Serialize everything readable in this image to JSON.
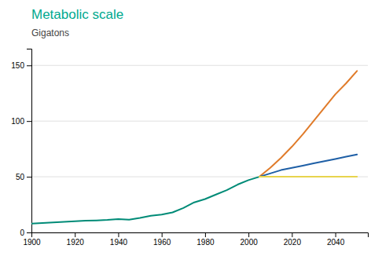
{
  "chart_data": {
    "type": "line",
    "title": "Metabolic scale",
    "subtitle": "Gigatons",
    "xlim": [
      1900,
      2055
    ],
    "ylim": [
      0,
      165
    ],
    "xticks": [
      1900,
      1920,
      1940,
      1960,
      1980,
      2000,
      2020,
      2040
    ],
    "yticks": [
      0,
      50,
      100,
      150
    ],
    "grid": true,
    "series": [
      {
        "color": "#008B77",
        "x": [
          1900,
          1905,
          1910,
          1915,
          1920,
          1925,
          1930,
          1935,
          1940,
          1945,
          1950,
          1955,
          1960,
          1965,
          1970,
          1975,
          1980,
          1985,
          1990,
          1995,
          2000,
          2005
        ],
        "values": [
          8,
          8.5,
          9,
          9.5,
          10,
          10.5,
          10.8,
          11.2,
          12,
          11.5,
          13,
          15,
          16,
          18,
          22,
          27,
          30,
          34,
          38,
          43,
          47,
          50
        ]
      },
      {
        "color": "#E07B2A",
        "x": [
          2005,
          2010,
          2015,
          2020,
          2025,
          2030,
          2035,
          2040,
          2045,
          2050
        ],
        "values": [
          50,
          58,
          67,
          77,
          88,
          100,
          112,
          124,
          134,
          145
        ]
      },
      {
        "color": "#1E5FA6",
        "x": [
          2005,
          2010,
          2015,
          2020,
          2025,
          2030,
          2035,
          2040,
          2045,
          2050
        ],
        "values": [
          50,
          53,
          56,
          58,
          60,
          62,
          64,
          66,
          68,
          70
        ]
      },
      {
        "color": "#E8D44D",
        "x": [
          2005,
          2010,
          2015,
          2020,
          2025,
          2030,
          2035,
          2040,
          2045,
          2050
        ],
        "values": [
          50,
          50,
          50,
          50,
          50,
          50,
          50,
          50,
          50,
          50
        ]
      }
    ]
  }
}
